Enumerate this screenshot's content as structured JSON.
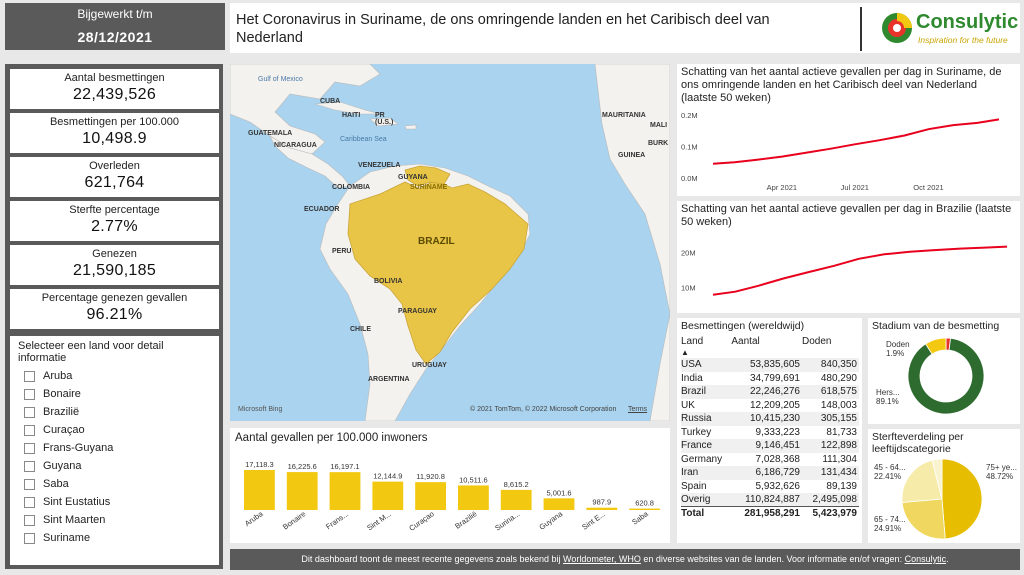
{
  "updated": {
    "label": "Bijgewerkt t/m",
    "date": "28/12/2021"
  },
  "header": {
    "title": "Het Coronavirus in Suriname, de ons omringende landen en het Caribisch deel van Nederland",
    "logo_name": "Consulytic",
    "logo_tagline": "Inspiration for the future"
  },
  "kpis": [
    {
      "label": "Aantal besmettingen",
      "value": "22,439,526"
    },
    {
      "label": "Besmettingen per 100.000",
      "value": "10,498.9"
    },
    {
      "label": "Overleden",
      "value": "621,764"
    },
    {
      "label": "Sterfte percentage",
      "value": "2.77%"
    },
    {
      "label": "Genezen",
      "value": "21,590,185"
    },
    {
      "label": "Percentage genezen gevallen",
      "value": "96.21%"
    }
  ],
  "slicer": {
    "title": "Selecteer een land voor detail informatie",
    "items": [
      "Aruba",
      "Bonaire",
      "Brazilië",
      "Curaçao",
      "Frans-Guyana",
      "Guyana",
      "Saba",
      "Sint Eustatius",
      "Sint Maarten",
      "Suriname"
    ]
  },
  "map": {
    "labels": {
      "gulf": "Gulf of Mexico",
      "cuba": "CUBA",
      "haiti": "HAITI",
      "pr": "PR (U.S.)",
      "caribbean": "Caribbean Sea",
      "guatemala": "GUATEMALA",
      "nicaragua": "NICARAGUA",
      "venezuela": "VENEZUELA",
      "guyana": "GUYANA",
      "suriname": "SURINAME",
      "colombia": "COLOMBIA",
      "ecuador": "ECUADOR",
      "peru": "PERU",
      "brazil": "BRAZIL",
      "bolivia": "BOLIVIA",
      "paraguay": "PARAGUAY",
      "chile": "CHILE",
      "uruguay": "URUGUAY",
      "argentina": "ARGENTINA",
      "mauritania": "MAURITANIA",
      "mali": "MALI",
      "guinea": "GUINEA",
      "burk": "BURK"
    },
    "bing": "Microsoft Bing",
    "attribution": "© 2021 TomTom, © 2022 Microsoft Corporation",
    "terms": "Terms",
    "colors": {
      "ocean": "#a9d3ee",
      "land": "#f4f2ee",
      "highlight": "#e8c547"
    }
  },
  "bar_chart": {
    "title": "Aantal gevallen per 100.000 inwoners",
    "color": "#f2c811"
  },
  "line_chart_1": {
    "title": "Schatting van het aantal actieve gevallen per dag in Suriname, de ons omringende landen en het Caribisch deel van Nederland (laatste 50 weken)"
  },
  "line_chart_2": {
    "title": "Schatting van het aantal actieve gevallen per dag in Brazilie (laatste 50 weken)"
  },
  "table": {
    "title": "Besmettingen (wereldwijd)",
    "headers": [
      "Land",
      "Aantal",
      "Doden"
    ],
    "rows": [
      [
        "USA",
        "53,835,605",
        "840,350"
      ],
      [
        "India",
        "34,799,691",
        "480,290"
      ],
      [
        "Brazil",
        "22,246,276",
        "618,575"
      ],
      [
        "UK",
        "12,209,205",
        "148,003"
      ],
      [
        "Russia",
        "10,415,230",
        "305,155"
      ],
      [
        "Turkey",
        "9,333,223",
        "81,733"
      ],
      [
        "France",
        "9,146,451",
        "122,898"
      ],
      [
        "Germany",
        "7,028,368",
        "111,304"
      ],
      [
        "Iran",
        "6,186,729",
        "131,434"
      ],
      [
        "Spain",
        "5,932,626",
        "89,139"
      ],
      [
        "Overig",
        "110,824,887",
        "2,495,098"
      ]
    ],
    "total": [
      "Total",
      "281,958,291",
      "5,423,979"
    ]
  },
  "donut_status": {
    "title": "Stadium van de besmetting",
    "slices": [
      {
        "label": "Doden",
        "pct": "1.9%",
        "value": 1.9,
        "color": "#e8332a"
      },
      {
        "label": "Hers...",
        "pct": "89.1%",
        "value": 89.1,
        "color": "#2e6b2e"
      },
      {
        "value": 9.0,
        "color": "#f2c811"
      }
    ]
  },
  "donut_age": {
    "title": "Sterfteverdeling per leeftijdscategorie",
    "slices": [
      {
        "label": "75+ ye...",
        "pct": "48.72%",
        "value": 48.72,
        "color": "#e6bd00"
      },
      {
        "label": "65 - 74...",
        "pct": "24.91%",
        "value": 24.91,
        "color": "#f0d860"
      },
      {
        "label": "45 - 64...",
        "pct": "22.41%",
        "value": 22.41,
        "color": "#f7eba9"
      },
      {
        "value": 3.96,
        "color": "#faf3cf"
      }
    ]
  },
  "footer": {
    "text1": "Dit dashboard toont de meest recente gegevens zoals bekend bij ",
    "link1": "Worldometer, WHO",
    "text2": " en diverse websites van de landen. Voor informatie en/of vragen: ",
    "link2": "Consulytic",
    "text3": "."
  },
  "chart_data": [
    {
      "type": "bar",
      "title": "Aantal gevallen per 100.000 inwoners",
      "categories": [
        "Aruba",
        "Bonaire",
        "Frans...",
        "Sint M...",
        "Curaçao",
        "Brazilië",
        "Surina...",
        "Guyana",
        "Sint E...",
        "Saba"
      ],
      "values": [
        17118.3,
        16225.6,
        16197.1,
        12144.9,
        11920.8,
        10511.6,
        8615.2,
        5001.6,
        987.9,
        620.8
      ],
      "value_labels": [
        "17,118.3",
        "16,225.6",
        "16,197.1",
        "12,144.9",
        "11,920.8",
        "10,511.6",
        "8,615.2",
        "5,001.6",
        "987.9",
        "620.8"
      ]
    },
    {
      "type": "line",
      "title": "Schatting van het aantal actieve gevallen per dag in Suriname, de ons omringende landen en het Caribisch deel van Nederland (laatste 50 weken)",
      "x": [
        "2021-01-05",
        "2021-02-01",
        "2021-03-01",
        "2021-04-01",
        "2021-05-01",
        "2021-06-01",
        "2021-07-01",
        "2021-08-01",
        "2021-09-01",
        "2021-10-01",
        "2021-11-01",
        "2021-12-01",
        "2021-12-28"
      ],
      "y": [
        0.045,
        0.05,
        0.058,
        0.068,
        0.08,
        0.093,
        0.107,
        0.12,
        0.135,
        0.155,
        0.168,
        0.175,
        0.186
      ],
      "xticks": [
        "Apr 2021",
        "Jul 2021",
        "Oct 2021"
      ],
      "yticks": [
        "0.0M",
        "0.1M",
        "0.2M"
      ],
      "ylim": [
        0,
        0.2
      ],
      "color": "#e8001c"
    },
    {
      "type": "line",
      "title": "Schatting van het aantal actieve gevallen per dag in Brazilie (laatste 50 weken)",
      "x": [
        "2021-01-05",
        "2021-02-01",
        "2021-03-01",
        "2021-04-01",
        "2021-05-01",
        "2021-06-01",
        "2021-07-01",
        "2021-08-01",
        "2021-09-01",
        "2021-10-01",
        "2021-11-01",
        "2021-12-01",
        "2021-12-28"
      ],
      "y": [
        7.9,
        8.8,
        10.5,
        12.6,
        14.4,
        16.2,
        18.2,
        19.5,
        20.2,
        20.7,
        21.1,
        21.4,
        21.7
      ],
      "yticks": [
        "10M",
        "20M"
      ],
      "ylim": [
        5,
        25
      ],
      "color": "#e8001c"
    }
  ]
}
